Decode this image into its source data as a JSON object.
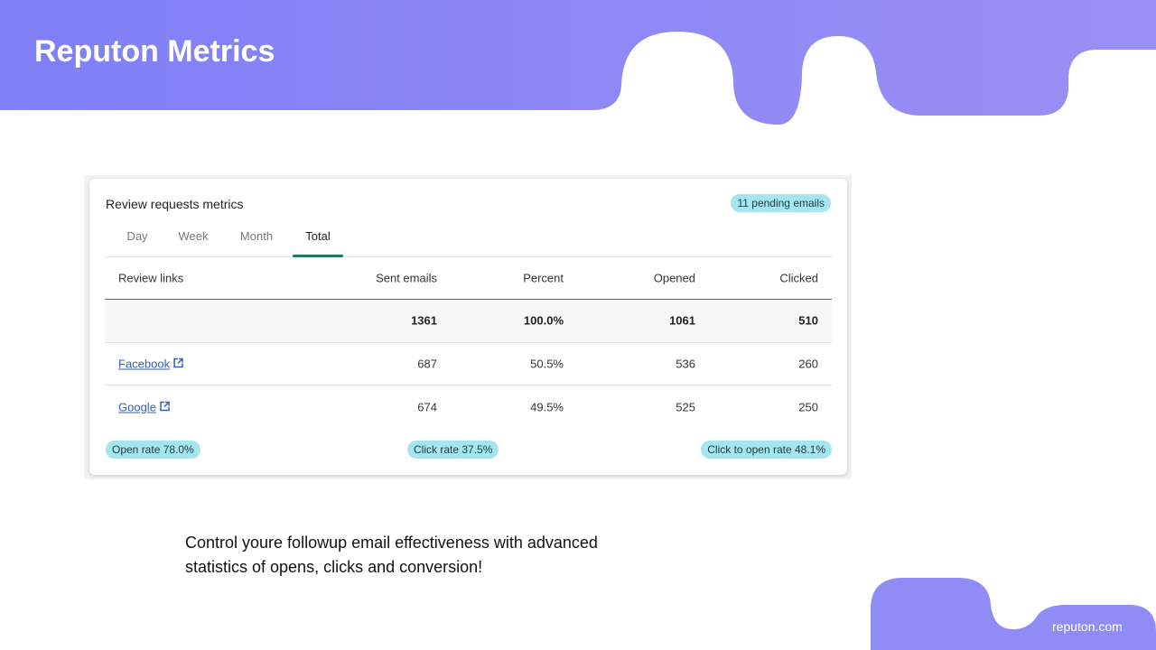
{
  "header": {
    "title": "Reputon Metrics"
  },
  "card": {
    "title": "Review requests metrics",
    "badge": "11 pending emails",
    "tabs": [
      "Day",
      "Week",
      "Month",
      "Total"
    ],
    "active_tab": 3,
    "table": {
      "columns": [
        "Review links",
        "Sent emails",
        "Percent",
        "Opened",
        "Clicked"
      ],
      "rows": [
        [
          "",
          "1361",
          "100.0%",
          "1061",
          "510"
        ],
        [
          "Facebook",
          "687",
          "50.5%",
          "536",
          "260"
        ],
        [
          "Google",
          "674",
          "49.5%",
          "525",
          "250"
        ]
      ]
    },
    "stats": [
      "Open rate 78.0%",
      "Click rate 37.5%",
      "Click to open rate 48.1%"
    ]
  },
  "caption": [
    "Control youre followup email effectiveness with advanced",
    "statistics of opens, clicks and conversion!"
  ],
  "footer": {
    "site": "reputon.com"
  }
}
